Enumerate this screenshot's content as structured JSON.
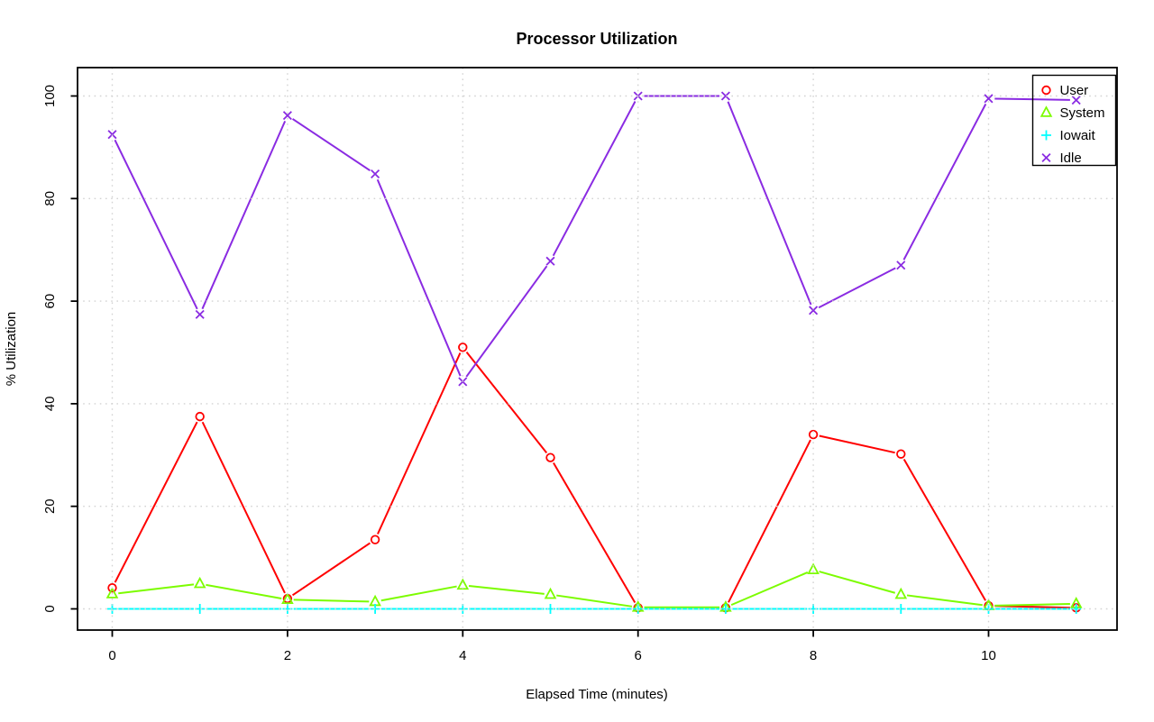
{
  "chart_data": {
    "type": "line",
    "title": "Processor Utilization",
    "xlabel": "Elapsed Time (minutes)",
    "ylabel": "% Utilization",
    "x": [
      0,
      1,
      2,
      3,
      4,
      5,
      6,
      7,
      8,
      9,
      10,
      11
    ],
    "xticks": [
      0,
      2,
      4,
      6,
      8,
      10
    ],
    "yticks": [
      0,
      20,
      40,
      60,
      80,
      100
    ],
    "xlim": [
      -0.44,
      11.44
    ],
    "ylim": [
      -4,
      104
    ],
    "grid": "dotted",
    "grid_on": true,
    "legend_position": "top-right",
    "series": [
      {
        "name": "User",
        "color": "#ff0000",
        "marker": "circle",
        "values": [
          4.1,
          37.5,
          2.0,
          13.5,
          51.0,
          29.5,
          0.2,
          0.2,
          34.0,
          30.2,
          0.6,
          0.2
        ]
      },
      {
        "name": "System",
        "color": "#7cfc00",
        "marker": "triangle",
        "values": [
          2.9,
          4.9,
          1.8,
          1.4,
          4.6,
          2.8,
          0.3,
          0.3,
          7.6,
          2.8,
          0.6,
          1.0
        ]
      },
      {
        "name": "Iowait",
        "color": "#00ffff",
        "marker": "plus",
        "values": [
          0,
          0,
          0,
          0,
          0,
          0,
          0,
          0,
          0,
          0,
          0,
          0
        ]
      },
      {
        "name": "Idle",
        "color": "#8a2be2",
        "marker": "x",
        "values": [
          92.5,
          57.4,
          96.2,
          84.8,
          44.3,
          67.8,
          100,
          100,
          58.2,
          67.0,
          99.5,
          99.2
        ]
      }
    ]
  },
  "colors": {
    "background": "#ffffff",
    "grid": "#d3d3d3",
    "axis": "#000000",
    "text": "#000000"
  }
}
